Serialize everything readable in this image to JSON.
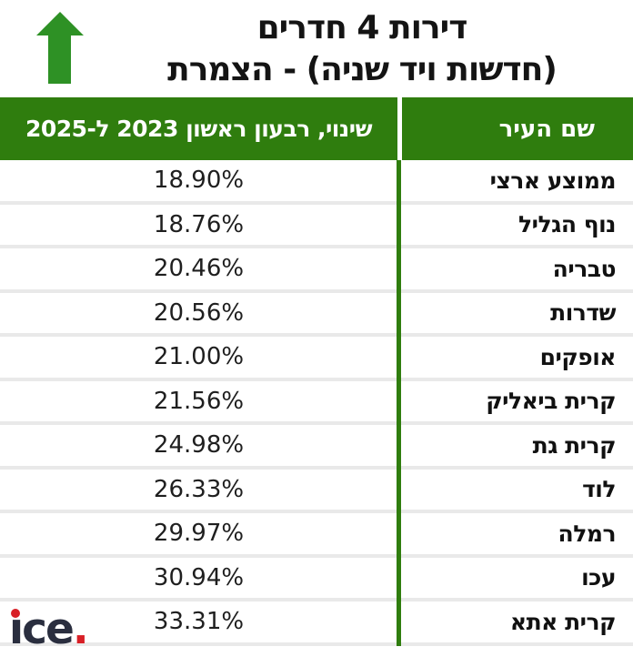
{
  "title": {
    "line1": "דירות 4 חדרים",
    "line2": "(חדשות ויד שניה) - הצמרת"
  },
  "table": {
    "header": {
      "change_label": "שינוי, רבעון ראשון 2023 ל-2025",
      "city_label": "שם העיר"
    },
    "rows": [
      {
        "city": "ממוצע ארצי",
        "value": "18.90%"
      },
      {
        "city": "נוף הגליל",
        "value": "18.76%"
      },
      {
        "city": "טבריה",
        "value": "20.46%"
      },
      {
        "city": "שדרות",
        "value": "20.56%"
      },
      {
        "city": "אופקים",
        "value": "21.00%"
      },
      {
        "city": "קרית ביאליק",
        "value": "21.56%"
      },
      {
        "city": "קרית גת",
        "value": "24.98%"
      },
      {
        "city": "לוד",
        "value": "26.33%"
      },
      {
        "city": "רמלה",
        "value": "29.97%"
      },
      {
        "city": "עכו",
        "value": "30.94%"
      },
      {
        "city": "קרית אתא",
        "value": "33.31%"
      }
    ]
  },
  "logo": {
    "text": "ıce",
    "period": "."
  },
  "colors": {
    "header_green": "#2f7d0e",
    "arrow_green": "#2e9125",
    "divider_gray": "#e9e9e9",
    "logo_navy": "#2a2e3f",
    "logo_red": "#d81f26"
  },
  "chart_data": {
    "type": "table",
    "title": "דירות 4 חדרים (חדשות ויד שניה) - הצמרת",
    "columns": [
      "שם העיר",
      "שינוי, רבעון ראשון 2023 ל-2025"
    ],
    "categories": [
      "ממוצע ארצי",
      "נוף הגליל",
      "טבריה",
      "שדרות",
      "אופקים",
      "קרית ביאליק",
      "קרית גת",
      "לוד",
      "רמלה",
      "עכו",
      "קרית אתא"
    ],
    "values": [
      18.9,
      18.76,
      20.46,
      20.56,
      21.0,
      21.56,
      24.98,
      26.33,
      29.97,
      30.94,
      33.31
    ],
    "unit": "%",
    "sort": "ascending by value",
    "legend": "none",
    "grid": "row separators only"
  }
}
